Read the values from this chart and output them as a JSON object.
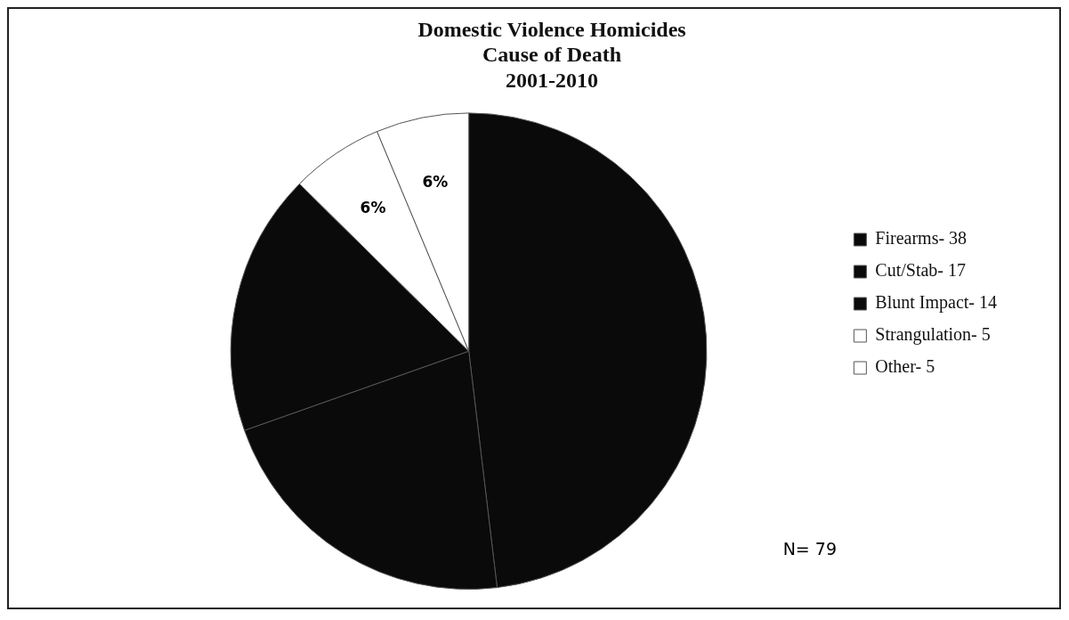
{
  "chart_data": {
    "type": "pie",
    "title": "Domestic Violence Homicides\nCause of Death\n2001-2010",
    "categories": [
      "Firearms- 38",
      "Cut/Stab- 17",
      "Blunt Impact- 14",
      "Strangulation- 5",
      "Other- 5"
    ],
    "values": [
      48.1,
      21.5,
      17.8,
      6.3,
      6.3
    ],
    "colors": [
      "#0a0a0a",
      "#0a0a0a",
      "#0a0a0a",
      "#ffffff",
      "#ffffff"
    ],
    "value_labels": [
      null,
      null,
      null,
      "6%",
      "6%"
    ],
    "legend": "right",
    "annotations": [
      "N= 79"
    ]
  }
}
